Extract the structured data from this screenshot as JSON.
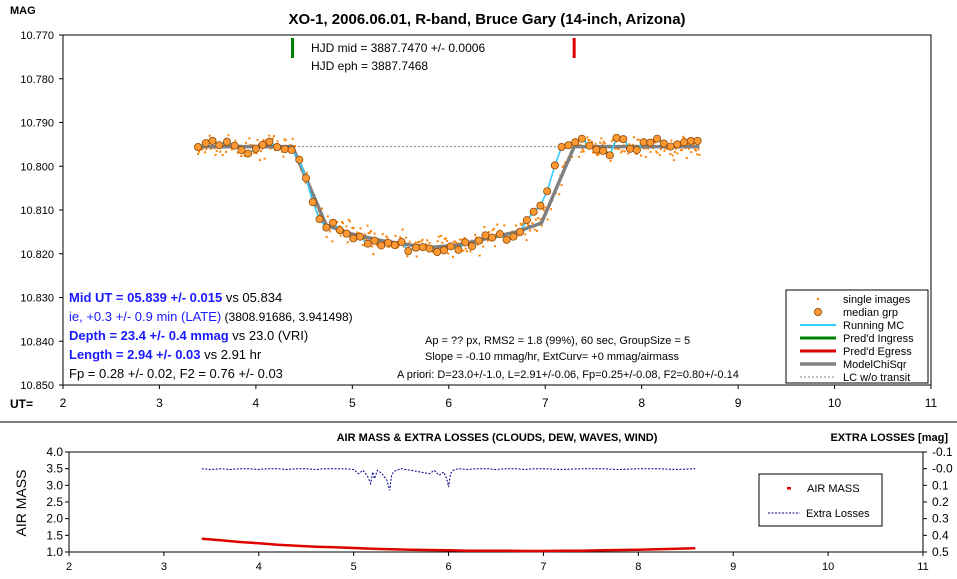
{
  "chart_data": [
    {
      "type": "scatter",
      "title": "XO-1, 2006.06.01, R-band, Bruce Gary (14-inch, Arizona)",
      "ylabel": "MAG",
      "xlabel": "UT=",
      "xlim": [
        2,
        11
      ],
      "ylim": [
        10.77,
        10.85
      ],
      "y_inverted": true,
      "grid": false,
      "xticks": [
        "2",
        "3",
        "4",
        "5",
        "6",
        "7",
        "8",
        "9",
        "10",
        "11"
      ],
      "yticks": [
        "10.770",
        "10.780",
        "10.790",
        "10.800",
        "10.810",
        "10.820",
        "10.830",
        "10.840",
        "10.850"
      ],
      "ingress_marker": {
        "x": 4.38,
        "color": "#008000"
      },
      "egress_marker": {
        "x": 7.3,
        "color": "#e00000"
      },
      "hjd_mid": "HJD mid = 3887.7470 +/- 0.0006",
      "hjd_eph": "HJD eph = 3887.7468",
      "results": {
        "mid_ut_label": "Mid UT = 05.839 +/- 0.015",
        "mid_ut_vs": " vs 05.834",
        "ie_label": "ie, +0.3 +/- 0.9 min (LATE)",
        "ie_rest": " (3808.91686, 3.941498)",
        "depth_label": "Depth = 23.4 +/- 0.4 mmag",
        "depth_vs": " vs 23.0 (VRI)",
        "length_label": "Length = 2.94 +/- 0.03",
        "length_vs": "  vs 2.91 hr",
        "fp_line": "Fp = 0.28 +/- 0.02, F2 = 0.76 +/- 0.03"
      },
      "info": {
        "line1": "Ap = ?? px, RMS2 = 1.8 (99%), 60 sec, GroupSize = 5",
        "line2": "Slope = -0.10 mmag/hr, ExtCurv= +0 mmag/airmass",
        "line3": "A priori: D=23.0+/-1.0, L=2.91+/-0.06, Fp=0.25+/-0.08, F2=0.80+/-0.14"
      },
      "legend": [
        {
          "name": "single images",
          "color": "#ff8000"
        },
        {
          "name": "median grp",
          "color": "#ff9933"
        },
        {
          "name": "Running MC",
          "color": "#33ccff"
        },
        {
          "name": "Pred'd Ingress",
          "color": "#008000"
        },
        {
          "name": "Pred'd Egress",
          "color": "#e00000"
        },
        {
          "name": "ModelChiSqr",
          "color": "#808080"
        },
        {
          "name": "LC w/o transit",
          "color": "#808080"
        }
      ],
      "model": {
        "x": [
          3.4,
          4.38,
          4.73,
          5.0,
          5.3,
          5.6,
          5.84,
          6.1,
          6.4,
          6.7,
          6.96,
          7.3,
          8.6
        ],
        "y": [
          10.7955,
          10.7955,
          10.8135,
          10.8155,
          10.817,
          10.818,
          10.8185,
          10.818,
          10.8165,
          10.815,
          10.813,
          10.7955,
          10.7955
        ]
      },
      "baseline_mag": 10.7955,
      "median_groups": {
        "x": [
          3.4,
          3.48,
          3.55,
          3.62,
          3.7,
          3.78,
          3.85,
          3.92,
          4.0,
          4.07,
          4.14,
          4.22,
          4.3,
          4.37,
          4.45,
          4.52,
          4.59,
          4.66,
          4.73,
          4.8,
          4.87,
          4.94,
          5.01,
          5.08,
          5.16,
          5.23,
          5.3,
          5.37,
          5.44,
          5.51,
          5.58,
          5.66,
          5.73,
          5.8,
          5.88,
          5.95,
          6.02,
          6.1,
          6.17,
          6.24,
          6.31,
          6.38,
          6.45,
          6.53,
          6.6,
          6.67,
          6.74,
          6.81,
          6.88,
          6.95,
          7.02,
          7.1,
          7.17,
          7.24,
          7.31,
          7.38,
          7.46,
          7.53,
          7.6,
          7.67,
          7.74,
          7.81,
          7.88,
          7.95,
          8.02,
          8.09,
          8.16,
          8.23,
          8.3,
          8.37,
          8.44,
          8.51,
          8.58
        ],
        "y": [
          10.7956,
          10.7947,
          10.7942,
          10.7952,
          10.7944,
          10.7953,
          10.7963,
          10.7971,
          10.796,
          10.7951,
          10.7944,
          10.7956,
          10.7961,
          10.7963,
          10.7985,
          10.8027,
          10.8082,
          10.8121,
          10.814,
          10.8129,
          10.8146,
          10.8154,
          10.8165,
          10.8161,
          10.8177,
          10.817,
          10.8181,
          10.8175,
          10.818,
          10.8173,
          10.8194,
          10.8186,
          10.8185,
          10.8188,
          10.8196,
          10.8192,
          10.8183,
          10.8191,
          10.8174,
          10.8183,
          10.817,
          10.8158,
          10.8163,
          10.8155,
          10.8168,
          10.8161,
          10.815,
          10.8123,
          10.8104,
          10.809,
          10.8057,
          10.7998,
          10.7956,
          10.7952,
          10.7945,
          10.7937,
          10.7953,
          10.7962,
          10.7965,
          10.7975,
          10.7935,
          10.7938,
          10.796,
          10.7963,
          10.7945,
          10.7946,
          10.7937,
          10.7948,
          10.7955,
          10.795,
          10.7945,
          10.7942,
          10.7942
        ]
      },
      "single_images_note": "~430 scatter points distributed around the transit curve, 3.4 to 8.6 hr UT, scatter sigma about 1.8 mmag"
    },
    {
      "type": "line",
      "title": "AIR MASS & EXTRA LOSSES (CLOUDS, DEW, WAVES, WIND)",
      "ylabel": "AIR MASS",
      "y2label": "EXTRA LOSSES [mag]",
      "xlim": [
        2,
        11
      ],
      "ylim": [
        1.0,
        4.0
      ],
      "y2lim": [
        -0.1,
        0.5
      ],
      "y2_inverted": true,
      "xticks": [
        "2",
        "3",
        "4",
        "5",
        "6",
        "7",
        "8",
        "9",
        "10",
        "11"
      ],
      "yticks": [
        "1.0",
        "1.5",
        "2.0",
        "2.5",
        "3.0",
        "3.5",
        "4.0"
      ],
      "y2ticks": [
        "-0.1",
        "-0.0",
        "0.1",
        "0.2",
        "0.3",
        "0.4",
        "0.5"
      ],
      "legend": [
        {
          "name": "AIR MASS",
          "color": "#e00000"
        },
        {
          "name": "Extra Losses",
          "color": "#00008b"
        }
      ],
      "series": [
        {
          "name": "AIR MASS",
          "x": [
            3.4,
            3.6,
            3.8,
            4.0,
            4.2,
            4.4,
            4.6,
            4.8,
            5.0,
            5.2,
            5.4,
            5.6,
            5.8,
            6.0,
            6.2,
            6.4,
            6.6,
            6.8,
            7.0,
            7.2,
            7.4,
            7.6,
            7.8,
            8.0,
            8.2,
            8.4,
            8.6
          ],
          "y": [
            1.4,
            1.35,
            1.3,
            1.26,
            1.22,
            1.19,
            1.16,
            1.14,
            1.12,
            1.1,
            1.08,
            1.07,
            1.06,
            1.05,
            1.04,
            1.04,
            1.04,
            1.03,
            1.03,
            1.04,
            1.04,
            1.05,
            1.06,
            1.07,
            1.08,
            1.1,
            1.11
          ]
        },
        {
          "name": "Extra Losses",
          "x": [
            3.4,
            3.5,
            3.6,
            3.7,
            3.8,
            3.9,
            4.0,
            4.1,
            4.2,
            4.3,
            4.4,
            4.5,
            4.6,
            4.7,
            4.8,
            4.9,
            5.0,
            5.05,
            5.1,
            5.15,
            5.18,
            5.2,
            5.22,
            5.25,
            5.3,
            5.35,
            5.38,
            5.4,
            5.42,
            5.45,
            5.5,
            5.6,
            5.7,
            5.8,
            5.85,
            5.9,
            5.95,
            5.98,
            6.0,
            6.02,
            6.05,
            6.1,
            6.2,
            6.3,
            6.4,
            6.5,
            6.6,
            6.7,
            6.8,
            6.9,
            7.0,
            7.2,
            7.4,
            7.6,
            7.8,
            8.0,
            8.2,
            8.4,
            8.6
          ],
          "y": [
            0.0,
            0.005,
            0.0,
            0.005,
            0.0,
            0.0,
            0.005,
            0.0,
            0.0,
            0.005,
            0.0,
            0.0,
            0.005,
            0.0,
            0.0,
            0.0,
            0.005,
            0.03,
            0.01,
            0.05,
            0.09,
            0.02,
            0.06,
            0.01,
            0.03,
            0.07,
            0.13,
            0.04,
            0.02,
            0.01,
            0.0,
            0.01,
            0.02,
            0.03,
            0.01,
            0.04,
            0.02,
            0.06,
            0.11,
            0.03,
            0.01,
            0.0,
            0.005,
            0.0,
            0.0,
            0.005,
            0.0,
            0.0,
            0.005,
            0.0,
            0.0,
            0.005,
            0.0,
            0.0,
            0.005,
            0.0,
            0.0,
            0.005,
            0.0
          ]
        }
      ]
    }
  ]
}
